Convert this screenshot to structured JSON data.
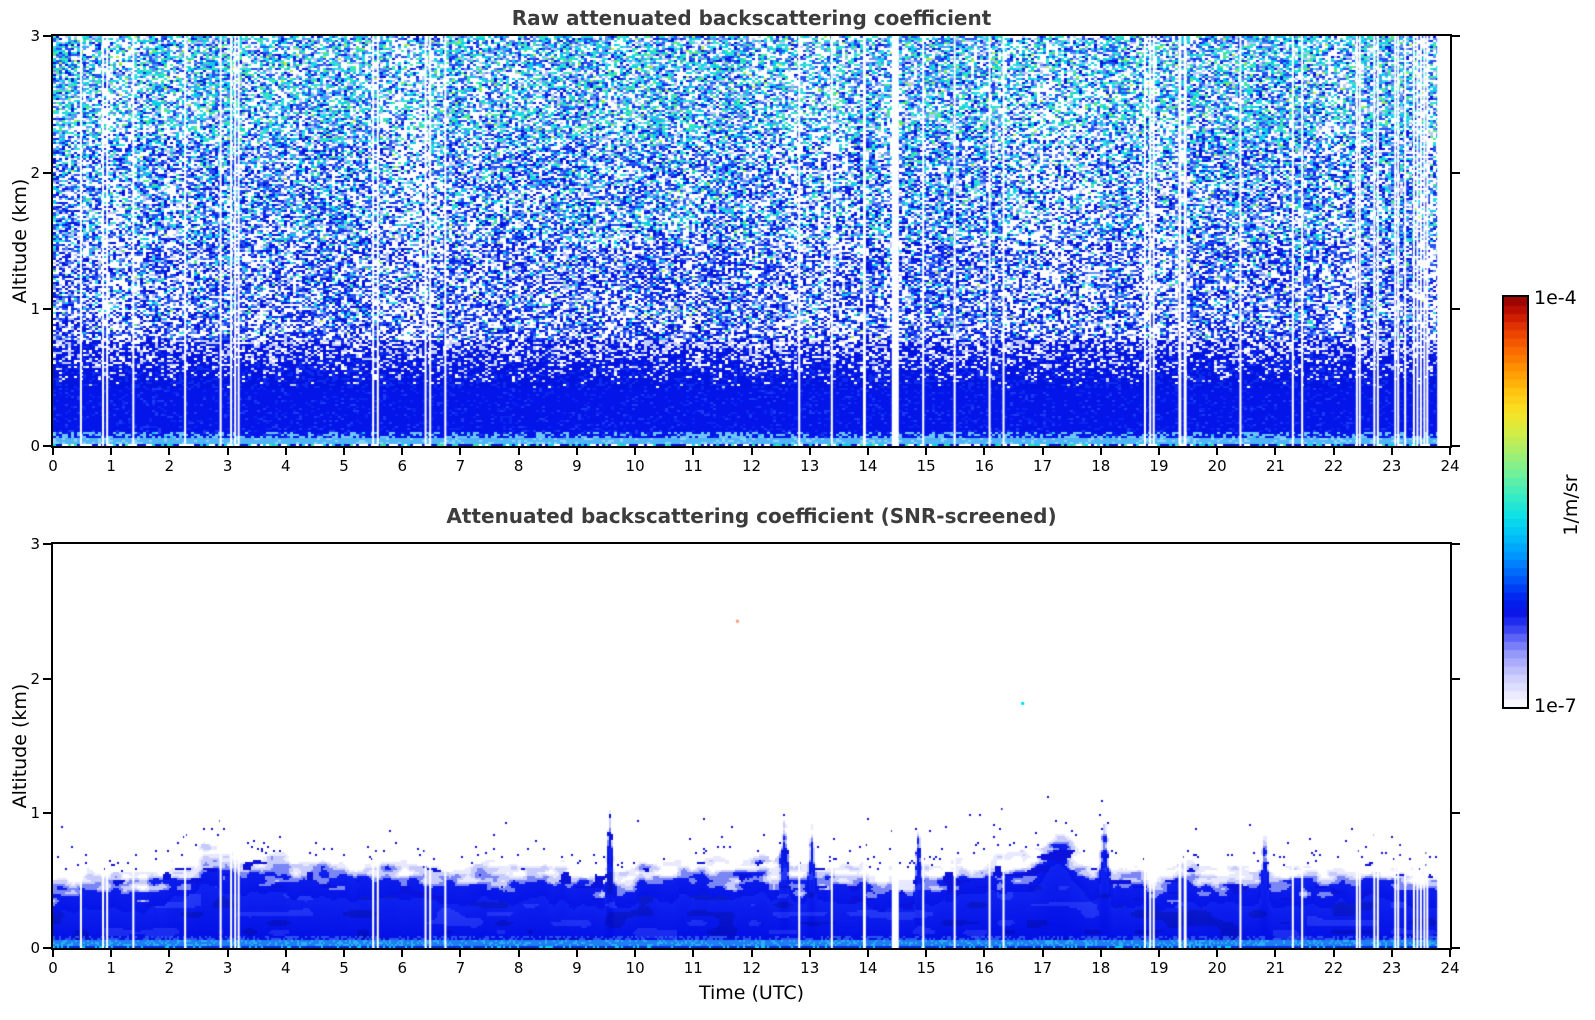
{
  "figure": {
    "background": "#ffffff",
    "title_color": "#3c3c3c"
  },
  "chart_data": [
    {
      "id": "raw",
      "type": "heatmap",
      "title": "Raw attenuated backscattering coefficient",
      "x": {
        "label": "",
        "range": [
          0,
          24
        ],
        "ticks": [
          0,
          1,
          2,
          3,
          4,
          5,
          6,
          7,
          8,
          9,
          10,
          11,
          12,
          13,
          14,
          15,
          16,
          17,
          18,
          19,
          20,
          21,
          22,
          23,
          24
        ]
      },
      "y": {
        "label": "Altitude (km)",
        "range": [
          0,
          3
        ],
        "ticks": [
          0,
          1,
          2,
          3
        ]
      },
      "value": {
        "units": "1/m/sr",
        "scale": "log",
        "min": 1e-07,
        "max": 0.0001
      },
      "data_start_hour": 0,
      "data_end_hour": 23.78,
      "gap_hours": [
        [
          0.48,
          0.035
        ],
        [
          0.86,
          0.035
        ],
        [
          0.93,
          0.035
        ],
        [
          1.38,
          0.035
        ],
        [
          2.27,
          0.035
        ],
        [
          2.88,
          0.035
        ],
        [
          3.06,
          0.035
        ],
        [
          3.13,
          0.035
        ],
        [
          3.19,
          0.035
        ],
        [
          5.5,
          0.035
        ],
        [
          5.58,
          0.035
        ],
        [
          6.4,
          0.035
        ],
        [
          6.48,
          0.035
        ],
        [
          6.74,
          0.035
        ],
        [
          12.82,
          0.035
        ],
        [
          13.38,
          0.035
        ],
        [
          13.94,
          0.05
        ],
        [
          14.47,
          0.12
        ],
        [
          14.95,
          0.035
        ],
        [
          15.49,
          0.035
        ],
        [
          16.09,
          0.035
        ],
        [
          16.33,
          0.035
        ],
        [
          18.76,
          0.035
        ],
        [
          18.85,
          0.035
        ],
        [
          18.91,
          0.035
        ],
        [
          19.36,
          0.05
        ],
        [
          19.45,
          0.05
        ],
        [
          20.4,
          0.035
        ],
        [
          21.3,
          0.035
        ],
        [
          21.46,
          0.035
        ],
        [
          22.4,
          0.035
        ],
        [
          22.45,
          0.035
        ],
        [
          22.7,
          0.035
        ],
        [
          22.76,
          0.035
        ],
        [
          23.06,
          0.035
        ],
        [
          23.11,
          0.035
        ],
        [
          23.23,
          0.035
        ],
        [
          23.38,
          0.035
        ],
        [
          23.44,
          0.035
        ],
        [
          23.5,
          0.035
        ],
        [
          23.56,
          0.035
        ],
        [
          23.61,
          0.035
        ]
      ],
      "field": {
        "solid_layer_top_km": 0.42,
        "speckle_fill_fraction": 0.6,
        "near_surface_cyan_band_km": [
          0.03,
          0.06
        ],
        "palette_low_alt": [
          "#0313dc",
          "#0c24ee",
          "#2152f3",
          "#5f8ff6"
        ],
        "palette_high_alt": [
          "#06cdec",
          "#2cdfe2",
          "#3ee6aa",
          "#5fe97e",
          "#b5ec4c"
        ],
        "description": "Noisy speckle of blue points over white; solid bright-blue layer below ~0.5 km, cyan/green speckle fraction increases toward 3 km"
      }
    },
    {
      "id": "screened",
      "type": "heatmap",
      "title": "Attenuated backscattering coefficient (SNR-screened)",
      "x": {
        "label": "Time (UTC)",
        "range": [
          0,
          24
        ],
        "ticks": [
          0,
          1,
          2,
          3,
          4,
          5,
          6,
          7,
          8,
          9,
          10,
          11,
          12,
          13,
          14,
          15,
          16,
          17,
          18,
          19,
          20,
          21,
          22,
          23,
          24
        ]
      },
      "y": {
        "label": "Altitude (km)",
        "range": [
          0,
          3
        ],
        "ticks": [
          0,
          1,
          2,
          3
        ]
      },
      "value": {
        "units": "1/m/sr",
        "scale": "log",
        "min": 1e-07,
        "max": 0.0001
      },
      "data_start_hour": 0,
      "data_end_hour": 23.78,
      "gap_hours": [
        [
          0.48,
          0.035
        ],
        [
          0.86,
          0.035
        ],
        [
          0.93,
          0.035
        ],
        [
          1.38,
          0.035
        ],
        [
          2.27,
          0.035
        ],
        [
          2.88,
          0.035
        ],
        [
          3.06,
          0.035
        ],
        [
          3.13,
          0.035
        ],
        [
          3.19,
          0.035
        ],
        [
          5.5,
          0.035
        ],
        [
          5.58,
          0.035
        ],
        [
          6.4,
          0.035
        ],
        [
          6.48,
          0.035
        ],
        [
          6.74,
          0.035
        ],
        [
          12.82,
          0.035
        ],
        [
          13.38,
          0.035
        ],
        [
          13.94,
          0.05
        ],
        [
          14.47,
          0.12
        ],
        [
          14.95,
          0.035
        ],
        [
          15.49,
          0.035
        ],
        [
          16.09,
          0.035
        ],
        [
          16.33,
          0.035
        ],
        [
          18.76,
          0.035
        ],
        [
          18.85,
          0.035
        ],
        [
          18.91,
          0.035
        ],
        [
          19.36,
          0.05
        ],
        [
          19.45,
          0.05
        ],
        [
          20.4,
          0.035
        ],
        [
          21.3,
          0.035
        ],
        [
          21.46,
          0.035
        ],
        [
          22.4,
          0.035
        ],
        [
          22.45,
          0.035
        ],
        [
          22.7,
          0.035
        ],
        [
          22.76,
          0.035
        ],
        [
          23.06,
          0.035
        ],
        [
          23.11,
          0.035
        ],
        [
          23.23,
          0.035
        ],
        [
          23.38,
          0.035
        ],
        [
          23.44,
          0.035
        ],
        [
          23.5,
          0.035
        ],
        [
          23.56,
          0.035
        ],
        [
          23.61,
          0.035
        ]
      ],
      "field": {
        "boundary_mean_km": 0.66,
        "boundary_variation_km": 0.13,
        "transition_band_km": 0.3,
        "speck_layer_above_km": 0.35,
        "plumes": [
          {
            "hour": 9.55,
            "top_km": 1.1,
            "sigma": 0.05
          },
          {
            "hour": 12.55,
            "top_km": 0.98,
            "sigma": 0.06
          },
          {
            "hour": 13.02,
            "top_km": 0.95,
            "sigma": 0.05
          },
          {
            "hour": 14.85,
            "top_km": 0.92,
            "sigma": 0.05
          },
          {
            "hour": 17.25,
            "top_km": 0.92,
            "sigma": 0.35
          },
          {
            "hour": 18.05,
            "top_km": 0.96,
            "sigma": 0.08
          },
          {
            "hour": 20.8,
            "top_km": 0.9,
            "sigma": 0.06
          }
        ],
        "outliers": [
          {
            "hour": 11.75,
            "km": 2.43,
            "color": "#ff9d7a"
          },
          {
            "hour": 16.65,
            "km": 1.82,
            "color": "#00dff0"
          }
        ],
        "description": "Solid bright-blue boundary-layer signal below ~0.7 km with pale mottled transition and sparse dark-blue specks up to ~1.1 km; white (screened out) above"
      }
    }
  ],
  "colorbar": {
    "max_label": "1e-4",
    "min_label": "1e-7",
    "unit_label": "1/m/sr",
    "orientation": "vertical",
    "stops": [
      [
        0.0,
        "#ffffff"
      ],
      [
        0.035,
        "#e8e8ff"
      ],
      [
        0.07,
        "#d0d0fe"
      ],
      [
        0.105,
        "#b0b2fc"
      ],
      [
        0.14,
        "#8a8ef9"
      ],
      [
        0.17,
        "#5c63f5"
      ],
      [
        0.2,
        "#2b36f0"
      ],
      [
        0.235,
        "#0713e6"
      ],
      [
        0.27,
        "#0028f0"
      ],
      [
        0.32,
        "#0061fa"
      ],
      [
        0.37,
        "#0096ff"
      ],
      [
        0.42,
        "#00c3f8"
      ],
      [
        0.47,
        "#10e2e4"
      ],
      [
        0.52,
        "#3eeec0"
      ],
      [
        0.57,
        "#71f19a"
      ],
      [
        0.62,
        "#a5ef70"
      ],
      [
        0.67,
        "#d3ed46"
      ],
      [
        0.72,
        "#f8e424"
      ],
      [
        0.77,
        "#ffc310"
      ],
      [
        0.82,
        "#ff9803"
      ],
      [
        0.87,
        "#fb6a00"
      ],
      [
        0.92,
        "#e93c00"
      ],
      [
        0.96,
        "#c61500"
      ],
      [
        1.0,
        "#8e0000"
      ]
    ]
  }
}
